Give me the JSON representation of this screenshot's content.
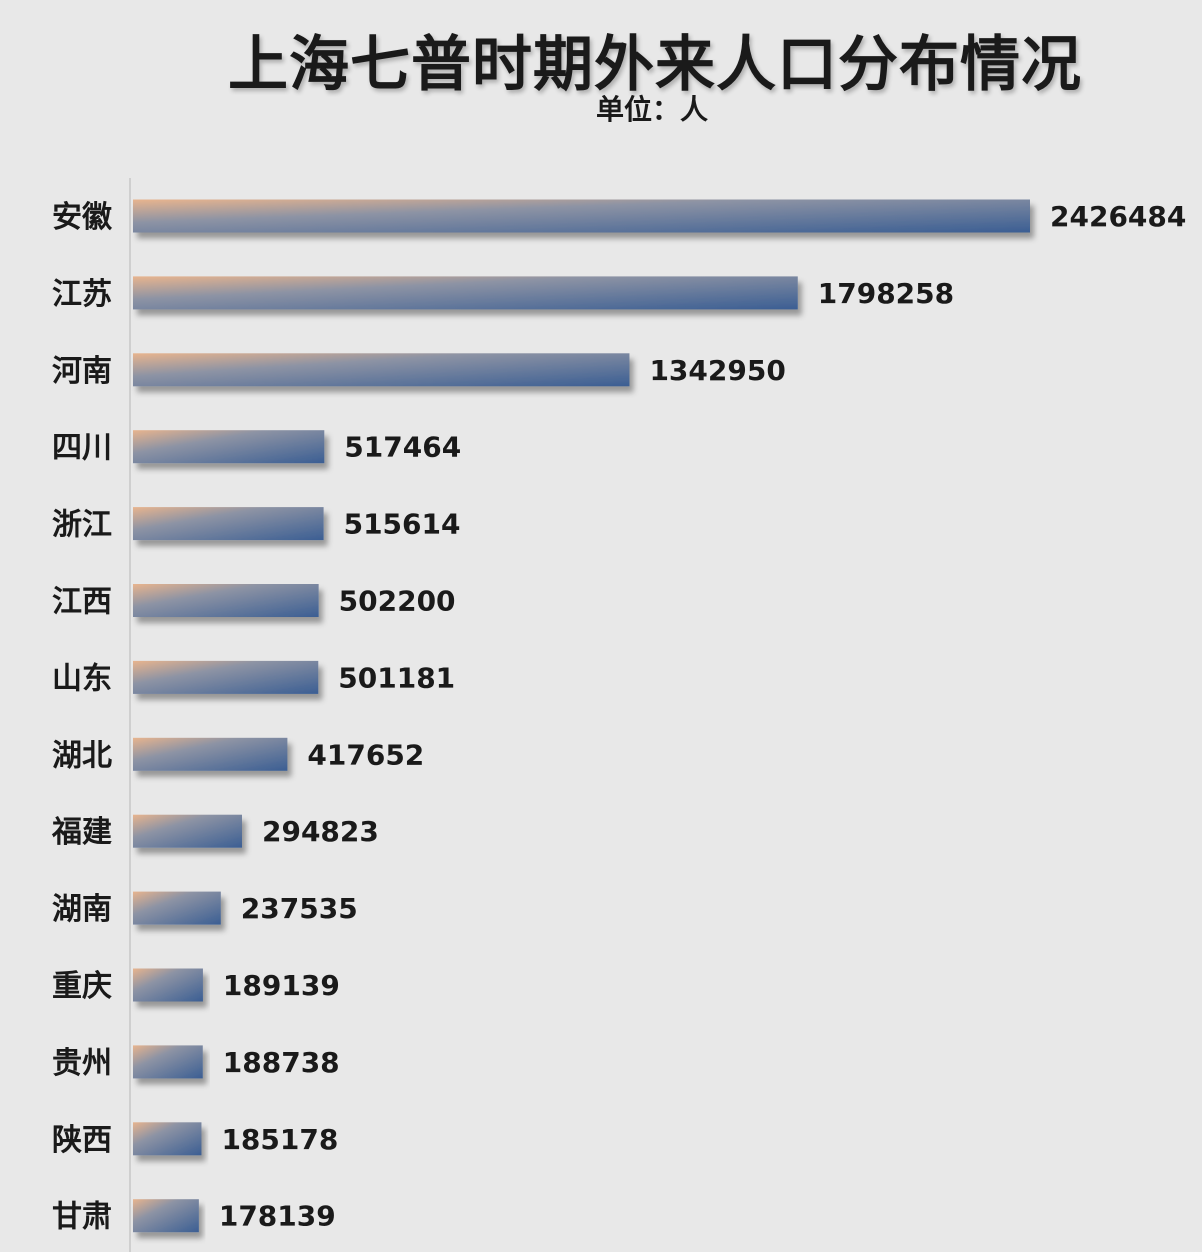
{
  "chart_data": {
    "type": "bar",
    "orientation": "horizontal",
    "title": "上海七普时期外来人口分布情况",
    "subtitle": "单位：人",
    "categories": [
      "安徽",
      "江苏",
      "河南",
      "四川",
      "浙江",
      "江西",
      "山东",
      "湖北",
      "福建",
      "湖南",
      "重庆",
      "贵州",
      "陕西",
      "甘肃"
    ],
    "values": [
      2426484,
      1798258,
      1342950,
      517464,
      515614,
      502200,
      501181,
      417652,
      294823,
      237535,
      189139,
      188738,
      185178,
      178139
    ],
    "data_labels": [
      "2426484",
      "1798258",
      "1342950",
      "517464",
      "515614",
      "502200",
      "501181",
      "417652",
      "294823",
      "237535",
      "189139",
      "188738",
      "185178",
      "178139"
    ],
    "xlim": [
      0,
      2426484
    ],
    "grid": false,
    "legend": "none",
    "colors": {
      "bar_start": "#e8b48e",
      "bar_end": "#3b5e93",
      "axis": "#cfcfcf",
      "background": "#e8e8e8"
    }
  }
}
